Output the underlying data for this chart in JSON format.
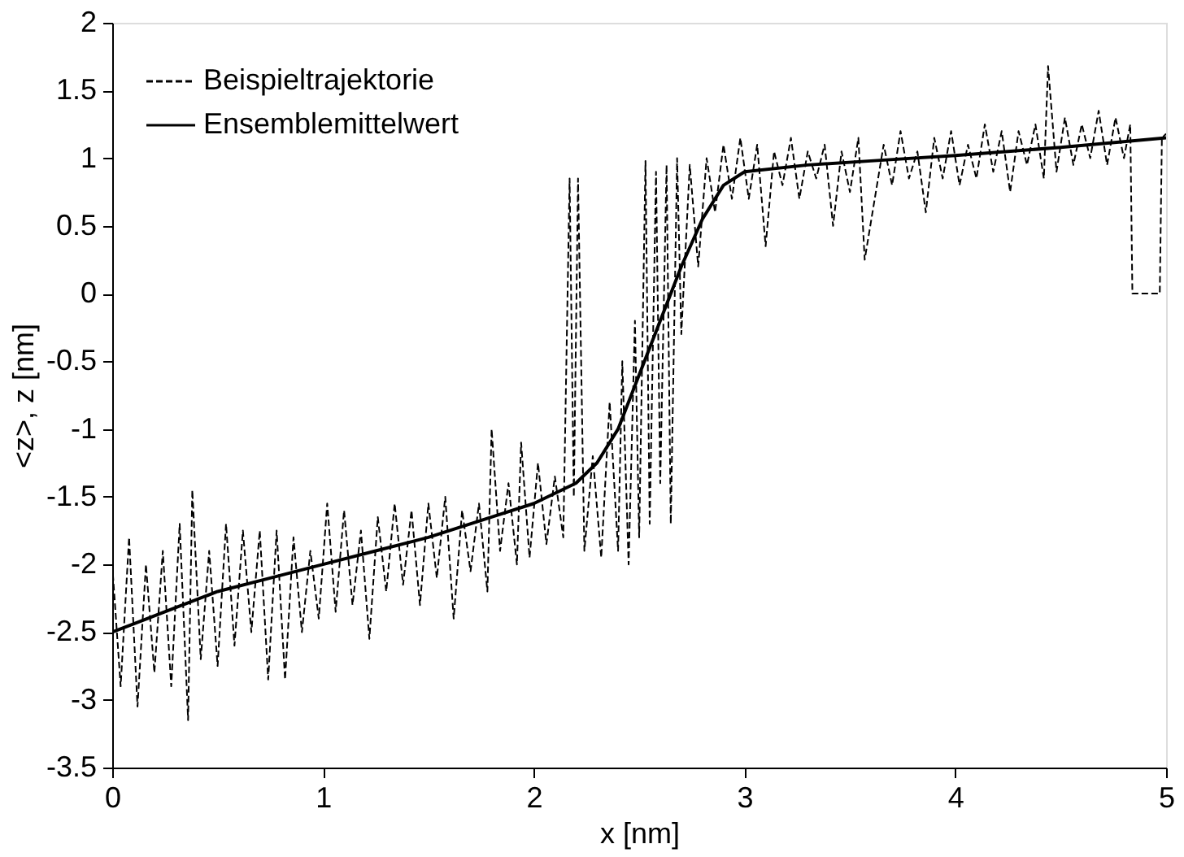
{
  "chart_data": {
    "type": "line",
    "xlabel": "x [nm]",
    "ylabel": "<z>, z [nm]",
    "xlim": [
      0,
      5
    ],
    "xticks": [
      0,
      1,
      2,
      3,
      4,
      5
    ],
    "ylim": [
      -3.5,
      2
    ],
    "yticks": [
      -3.5,
      -3,
      -2.5,
      -2,
      -1.5,
      -1,
      -0.5,
      0,
      0.5,
      1,
      1.5,
      2
    ],
    "grid": false,
    "legend": "top left",
    "marker": "none",
    "series": [
      {
        "name": "Beispieltrajektorie",
        "color": "#000000",
        "line_style": "dashed",
        "x": [
          0,
          0.04,
          0.08,
          0.12,
          0.16,
          0.2,
          0.24,
          0.28,
          0.32,
          0.36,
          0.38,
          0.42,
          0.46,
          0.5,
          0.54,
          0.58,
          0.62,
          0.66,
          0.7,
          0.74,
          0.78,
          0.82,
          0.86,
          0.9,
          0.94,
          0.98,
          1.02,
          1.06,
          1.1,
          1.14,
          1.18,
          1.22,
          1.26,
          1.3,
          1.34,
          1.38,
          1.42,
          1.46,
          1.5,
          1.54,
          1.58,
          1.62,
          1.66,
          1.7,
          1.74,
          1.78,
          1.8,
          1.84,
          1.88,
          1.92,
          1.94,
          1.98,
          2.02,
          2.06,
          2.1,
          2.14,
          2.17,
          2.19,
          2.21,
          2.24,
          2.28,
          2.32,
          2.36,
          2.4,
          2.42,
          2.45,
          2.48,
          2.5,
          2.53,
          2.55,
          2.58,
          2.6,
          2.63,
          2.65,
          2.68,
          2.7,
          2.74,
          2.78,
          2.82,
          2.86,
          2.9,
          2.94,
          2.98,
          3.02,
          3.06,
          3.1,
          3.14,
          3.18,
          3.22,
          3.26,
          3.3,
          3.34,
          3.38,
          3.42,
          3.46,
          3.5,
          3.54,
          3.57,
          3.66,
          3.7,
          3.74,
          3.78,
          3.82,
          3.86,
          3.9,
          3.94,
          3.98,
          4.02,
          4.06,
          4.1,
          4.14,
          4.18,
          4.22,
          4.26,
          4.3,
          4.34,
          4.38,
          4.42,
          4.44,
          4.48,
          4.52,
          4.56,
          4.6,
          4.64,
          4.68,
          4.72,
          4.76,
          4.8,
          4.83,
          4.84,
          4.97,
          4.98,
          5
        ],
        "values": [
          -2.0,
          -2.9,
          -1.8,
          -3.05,
          -2.0,
          -2.8,
          -1.9,
          -2.9,
          -1.7,
          -3.15,
          -1.45,
          -2.7,
          -1.9,
          -2.75,
          -1.7,
          -2.6,
          -1.75,
          -2.5,
          -1.75,
          -2.85,
          -1.75,
          -2.85,
          -1.8,
          -2.5,
          -1.9,
          -2.4,
          -1.55,
          -2.35,
          -1.6,
          -2.3,
          -1.75,
          -2.55,
          -1.65,
          -2.2,
          -1.55,
          -2.15,
          -1.6,
          -2.3,
          -1.55,
          -2.1,
          -1.5,
          -2.4,
          -1.6,
          -2.05,
          -1.55,
          -2.2,
          -1.0,
          -1.9,
          -1.4,
          -2.0,
          -1.1,
          -1.95,
          -1.25,
          -1.85,
          -1.35,
          -1.8,
          0.85,
          -1.5,
          0.85,
          -1.9,
          -1.2,
          -1.95,
          -0.8,
          -1.9,
          -0.5,
          -2.0,
          -0.2,
          -1.8,
          0.98,
          -1.7,
          0.9,
          -1.4,
          0.95,
          -1.7,
          1.0,
          -0.3,
          0.95,
          0.2,
          1.0,
          0.6,
          1.1,
          0.7,
          1.15,
          0.7,
          1.1,
          0.35,
          1.05,
          0.8,
          1.15,
          0.7,
          1.05,
          0.85,
          1.1,
          0.5,
          1.05,
          0.75,
          1.15,
          0.25,
          1.1,
          0.8,
          1.2,
          0.85,
          1.05,
          0.6,
          1.15,
          0.85,
          1.2,
          0.8,
          1.1,
          0.85,
          1.25,
          0.9,
          1.2,
          0.75,
          1.2,
          0.95,
          1.25,
          0.85,
          1.68,
          0.9,
          1.3,
          0.95,
          1.25,
          1.0,
          1.35,
          0.95,
          1.3,
          1.0,
          1.25,
          0.0,
          0.0,
          1.15,
          1.18
        ]
      },
      {
        "name": "Ensemblemittelwert",
        "color": "#000000",
        "line_style": "solid",
        "x": [
          0,
          0.25,
          0.5,
          0.75,
          1,
          1.25,
          1.5,
          1.8,
          2.0,
          2.2,
          2.3,
          2.4,
          2.5,
          2.6,
          2.7,
          2.8,
          2.9,
          3.0,
          3.3,
          3.6,
          4.0,
          4.5,
          5.0
        ],
        "values": [
          -2.5,
          -2.35,
          -2.2,
          -2.1,
          -2.0,
          -1.9,
          -1.8,
          -1.65,
          -1.55,
          -1.4,
          -1.25,
          -1.0,
          -0.6,
          -0.2,
          0.2,
          0.55,
          0.8,
          0.9,
          0.95,
          0.98,
          1.02,
          1.08,
          1.15
        ]
      }
    ]
  }
}
